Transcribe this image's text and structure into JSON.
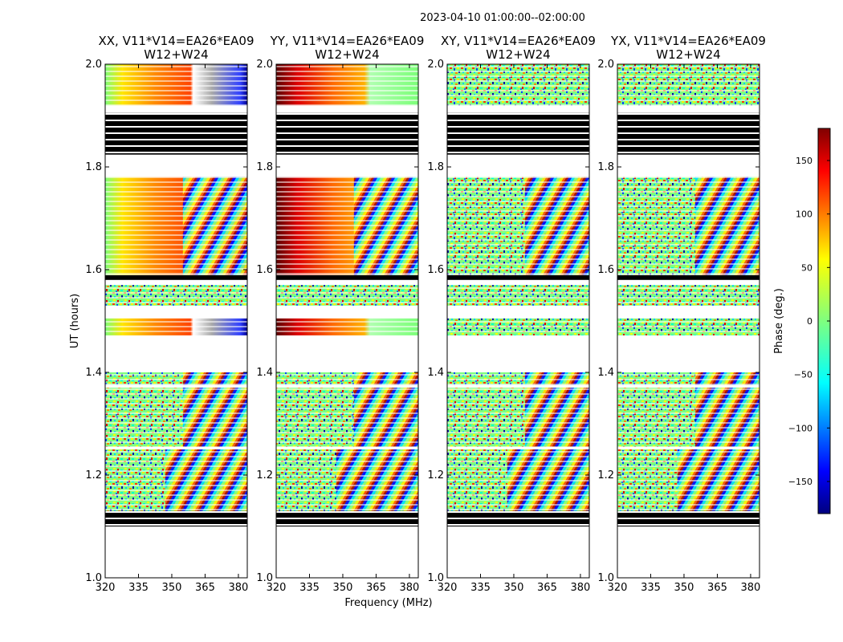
{
  "chart_data": {
    "type": "heatmap",
    "suptitle": "2023-04-10  01:00:00--02:00:00",
    "xlabel": "Frequency (MHz)",
    "ylabel": "UT (hours)",
    "xlim": [
      320,
      384
    ],
    "ylim": [
      1.0,
      2.0
    ],
    "xticks": [
      320,
      335,
      350,
      365,
      380
    ],
    "yticks": [
      1.0,
      1.2,
      1.4,
      1.6,
      1.8,
      2.0
    ],
    "panels": [
      {
        "title_line1": "XX, V11*V14=EA26*EA09",
        "title_line2": "W12+W24",
        "polarization": "XX"
      },
      {
        "title_line1": "YY, V11*V14=EA26*EA09",
        "title_line2": "W12+W24",
        "polarization": "YY"
      },
      {
        "title_line1": "XY, V11*V14=EA26*EA09",
        "title_line2": "W12+W24",
        "polarization": "XY"
      },
      {
        "title_line1": "YX, V11*V14=EA26*EA09",
        "title_line2": "W12+W24",
        "polarization": "YX"
      }
    ],
    "colorbar": {
      "label": "Phase (deg.)",
      "colormap": "jet",
      "vmin": -180,
      "vmax": 180,
      "ticks": [
        150,
        100,
        50,
        0,
        -50,
        -100,
        -150
      ],
      "tick_labels": [
        "150",
        "100",
        "50",
        "0",
        "−50",
        "−100",
        "−150"
      ]
    },
    "data_blocks_ut": [
      {
        "from": 1.92,
        "to": 2.0,
        "kind": "data"
      },
      {
        "from": 1.824,
        "to": 1.905,
        "kind": "flagged"
      },
      {
        "from": 1.59,
        "to": 1.78,
        "kind": "data"
      },
      {
        "from": 1.58,
        "to": 1.59,
        "kind": "flagged"
      },
      {
        "from": 1.53,
        "to": 1.57,
        "kind": "data"
      },
      {
        "from": 1.472,
        "to": 1.505,
        "kind": "data"
      },
      {
        "from": 1.376,
        "to": 1.4,
        "kind": "data"
      },
      {
        "from": 1.255,
        "to": 1.37,
        "kind": "data"
      },
      {
        "from": 1.13,
        "to": 1.25,
        "kind": "data"
      },
      {
        "from": 1.1,
        "to": 1.13,
        "kind": "flagged"
      }
    ]
  }
}
